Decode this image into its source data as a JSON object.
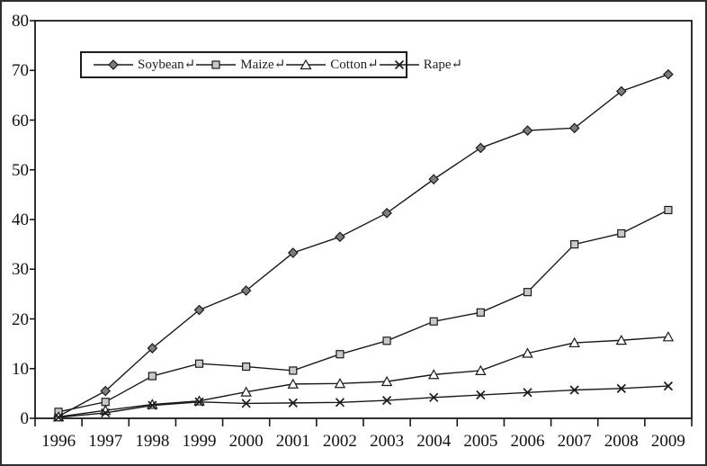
{
  "page": {
    "background": "#ffffff",
    "outer_border_color": "#2e2e2e",
    "axis_color": "#1a1a1a",
    "line_color": "#1a1a1a"
  },
  "legend": {
    "position": "top-left-inside",
    "border_color": "#1c1c1c"
  },
  "icons": {
    "soybean_marker": "diamond-icon",
    "maize_marker": "square-icon",
    "cotton_marker": "triangle-icon",
    "rape_marker": "x-icon"
  },
  "chart_data": {
    "type": "line",
    "title": "",
    "xlabel": "",
    "ylabel": "",
    "grid": false,
    "ylim": [
      0,
      80
    ],
    "yticks": [
      0,
      10,
      20,
      30,
      40,
      50,
      60,
      70,
      80
    ],
    "categories": [
      "1996",
      "1997",
      "1998",
      "1999",
      "2000",
      "2001",
      "2002",
      "2003",
      "2004",
      "2005",
      "2006",
      "2007",
      "2008",
      "2009"
    ],
    "legend_position": "top-left-inside",
    "series": [
      {
        "name": "Soybean↵",
        "marker": "diamond",
        "marker_fill": "#7d7d7d",
        "stroke": "#1a1a1a",
        "values": [
          0.4,
          5.5,
          14.1,
          21.8,
          25.7,
          33.3,
          36.5,
          41.3,
          48.1,
          54.4,
          57.9,
          58.4,
          65.8,
          69.2
        ]
      },
      {
        "name": "Maize↵",
        "marker": "square",
        "marker_fill": "#c9c9c9",
        "stroke": "#1a1a1a",
        "values": [
          1.3,
          3.3,
          8.5,
          11.0,
          10.4,
          9.6,
          12.9,
          15.6,
          19.5,
          21.3,
          25.4,
          35.0,
          37.2,
          41.9
        ]
      },
      {
        "name": "Cotton↵",
        "marker": "triangle",
        "marker_fill": "#ffffff",
        "stroke": "#1a1a1a",
        "values": [
          0.3,
          1.6,
          2.8,
          3.5,
          5.3,
          6.9,
          7.0,
          7.4,
          8.8,
          9.6,
          13.1,
          15.2,
          15.7,
          16.4
        ]
      },
      {
        "name": "Rape↵",
        "marker": "x",
        "marker_fill": "none",
        "stroke": "#1a1a1a",
        "values": [
          0.2,
          1.1,
          2.6,
          3.3,
          3.0,
          3.1,
          3.2,
          3.6,
          4.2,
          4.7,
          5.2,
          5.7,
          6.0,
          6.5
        ]
      }
    ]
  }
}
